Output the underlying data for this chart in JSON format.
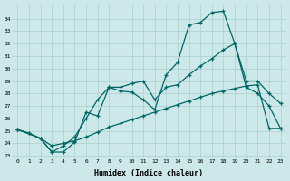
{
  "xlabel": "Humidex (Indice chaleur)",
  "background_color": "#cce8e8",
  "grid_color": "#aacfcf",
  "line_color": "#006666",
  "xlim": [
    -0.5,
    23.5
  ],
  "ylim": [
    22.8,
    35.2
  ],
  "yticks": [
    23,
    24,
    25,
    26,
    27,
    28,
    29,
    30,
    31,
    32,
    33,
    34
  ],
  "xticks": [
    0,
    1,
    2,
    3,
    4,
    5,
    6,
    7,
    8,
    9,
    10,
    11,
    12,
    13,
    14,
    15,
    16,
    17,
    18,
    19,
    20,
    21,
    22,
    23
  ],
  "line1_x": [
    0,
    1,
    2,
    3,
    4,
    5,
    6,
    7,
    8,
    9,
    10,
    11,
    12,
    13,
    14,
    15,
    16,
    17,
    18,
    19,
    20,
    21,
    22,
    23
  ],
  "line1_y": [
    25.1,
    24.8,
    24.4,
    23.3,
    23.3,
    24.1,
    26.5,
    26.2,
    28.5,
    28.2,
    28.1,
    27.5,
    26.7,
    29.5,
    30.5,
    33.5,
    33.7,
    34.5,
    34.6,
    32.0,
    28.5,
    28.0,
    27.0,
    25.2
  ],
  "line2_x": [
    0,
    2,
    3,
    4,
    5,
    6,
    7,
    8,
    9,
    10,
    11,
    12,
    13,
    14,
    15,
    16,
    17,
    18,
    19,
    20,
    21,
    22,
    23
  ],
  "line2_y": [
    25.1,
    24.4,
    23.3,
    23.8,
    24.5,
    26.0,
    27.5,
    28.5,
    28.5,
    28.8,
    29.0,
    27.5,
    28.5,
    28.7,
    29.5,
    30.2,
    30.8,
    31.5,
    32.0,
    29.0,
    29.0,
    28.0,
    27.2
  ],
  "line3_x": [
    0,
    1,
    2,
    3,
    4,
    5,
    6,
    7,
    8,
    9,
    10,
    11,
    12,
    13,
    14,
    15,
    16,
    17,
    18,
    19,
    20,
    21,
    22,
    23
  ],
  "line3_y": [
    25.1,
    24.8,
    24.4,
    23.8,
    24.0,
    24.2,
    24.5,
    24.9,
    25.3,
    25.6,
    25.9,
    26.2,
    26.5,
    26.8,
    27.1,
    27.4,
    27.7,
    28.0,
    28.2,
    28.4,
    28.6,
    28.7,
    25.2,
    25.2
  ]
}
